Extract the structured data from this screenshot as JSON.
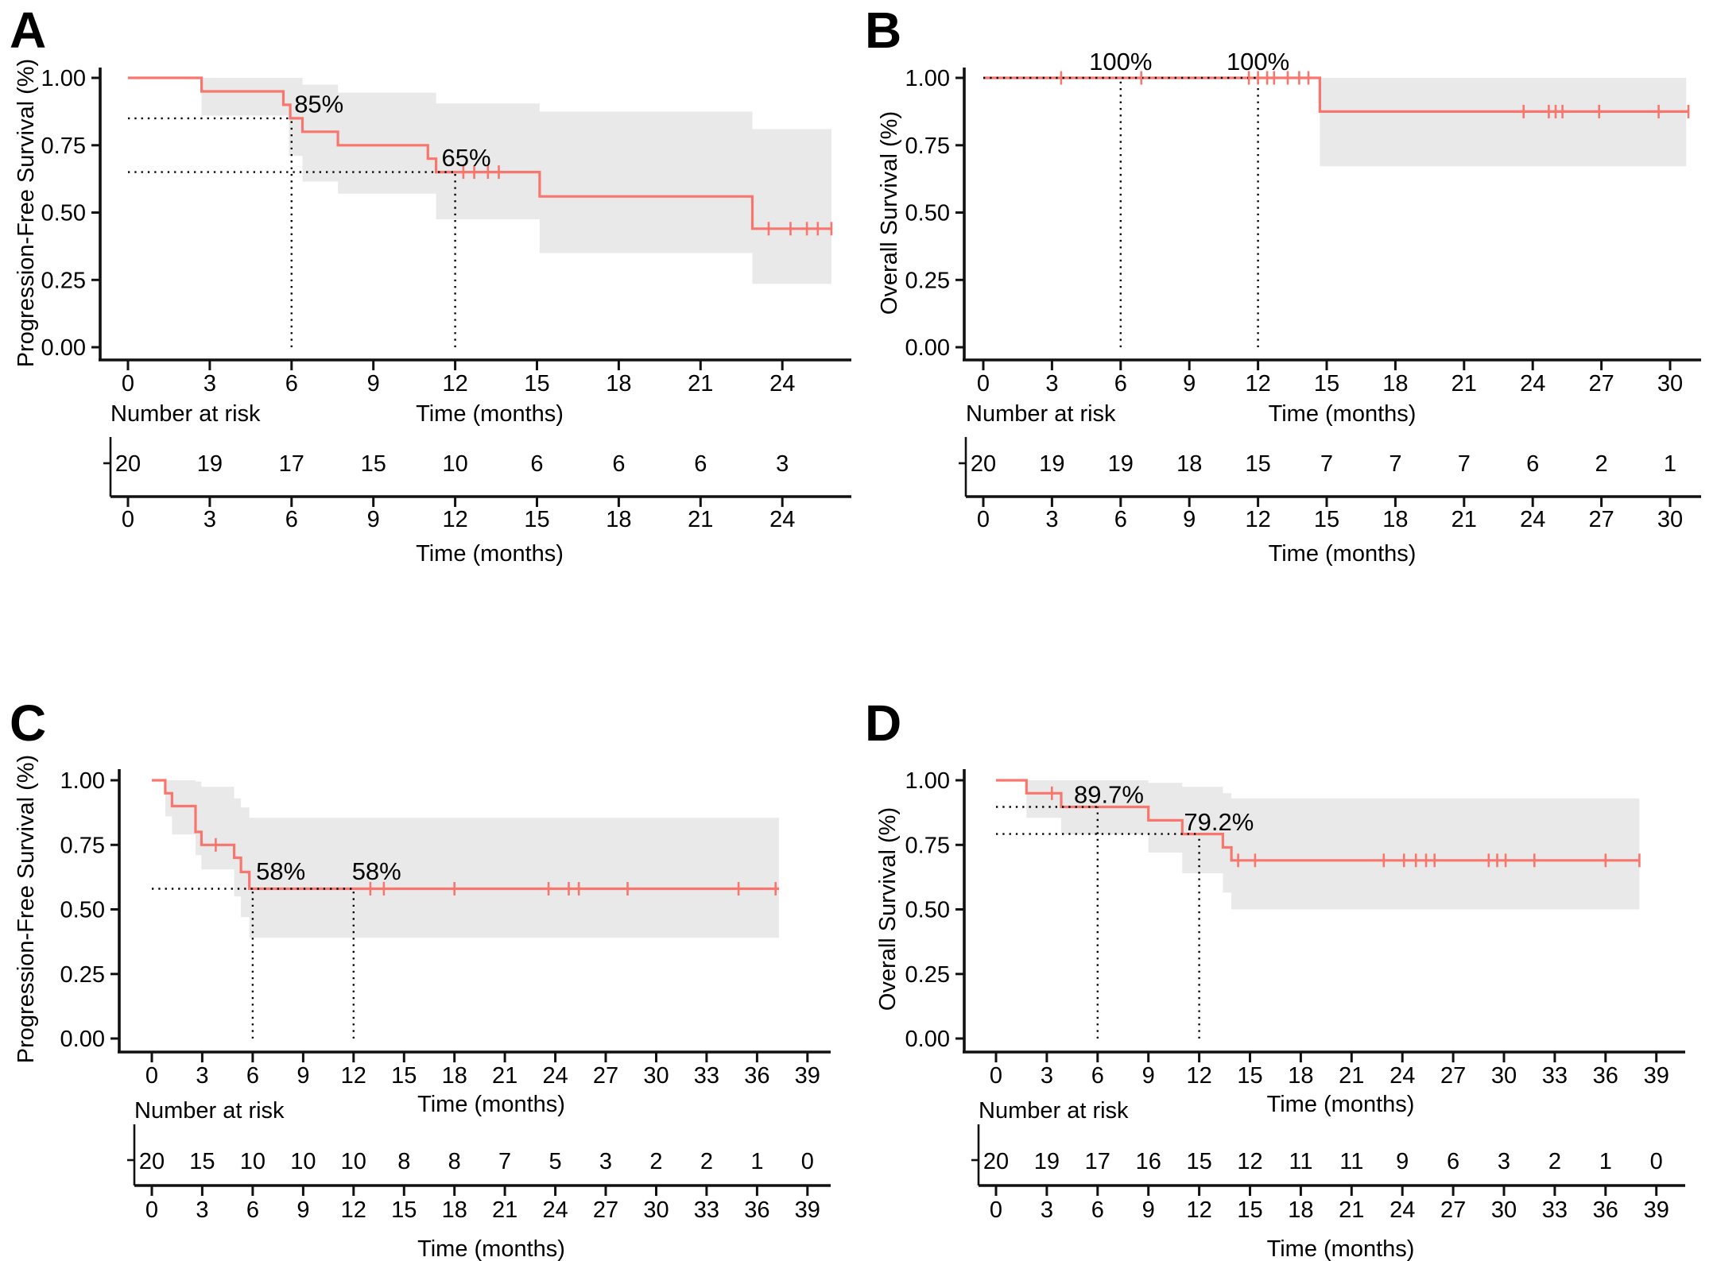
{
  "figure": {
    "background": "#ffffff",
    "text_color": "#000000",
    "panel_letters": [
      "A",
      "B",
      "C",
      "D"
    ]
  },
  "chart_data": [
    {
      "panel": "A",
      "type": "line",
      "chart_kind": "kaplan-meier-step",
      "ylabel": "Progression-Free Survival (%)",
      "xlabel": "Time (months)",
      "risk_header": "Number at risk",
      "x_ticks": [
        0,
        3,
        6,
        9,
        12,
        15,
        18,
        21,
        24
      ],
      "y_ticks": [
        0.0,
        0.25,
        0.5,
        0.75,
        1.0
      ],
      "y_tick_labels": [
        "0.00",
        "0.25",
        "0.50",
        "0.75",
        "1.00"
      ],
      "xlim": [
        0,
        26.5
      ],
      "ylim": [
        0,
        1.05
      ],
      "curve_color": "#F8766D",
      "ci_color": "#E9E9E9",
      "guide_color": "#000000",
      "steps": [
        [
          0,
          1.0
        ],
        [
          2.7,
          0.95
        ],
        [
          5.7,
          0.9
        ],
        [
          5.95,
          0.85
        ],
        [
          6.4,
          0.8
        ],
        [
          7.7,
          0.75
        ],
        [
          11.0,
          0.7
        ],
        [
          11.3,
          0.65
        ],
        [
          15.1,
          0.56
        ],
        [
          22.9,
          0.44
        ]
      ],
      "curve_end_x": 25.8,
      "censors": [
        [
          12.3,
          0.65
        ],
        [
          12.7,
          0.65
        ],
        [
          13.2,
          0.65
        ],
        [
          13.6,
          0.65
        ],
        [
          23.5,
          0.44
        ],
        [
          24.3,
          0.44
        ],
        [
          24.9,
          0.44
        ],
        [
          25.3,
          0.44
        ],
        [
          25.8,
          0.44
        ]
      ],
      "ci_steps": [
        [
          2.7,
          0.86,
          1.0
        ],
        [
          5.9,
          0.71,
          1.0
        ],
        [
          6.4,
          0.615,
          0.975
        ],
        [
          7.7,
          0.57,
          0.945
        ],
        [
          11.3,
          0.475,
          0.905
        ],
        [
          15.1,
          0.35,
          0.875
        ],
        [
          22.9,
          0.235,
          0.81
        ]
      ],
      "ci_end_x": 25.8,
      "annotations": [
        {
          "text": "85%",
          "x": 6.1,
          "y": 0.872,
          "anchor": "start"
        },
        {
          "text": "65%",
          "x": 11.5,
          "y": 0.672,
          "anchor": "start"
        }
      ],
      "guides": [
        {
          "o": "h",
          "at": 0.85,
          "from": 0,
          "to": 6
        },
        {
          "o": "v",
          "at": 6,
          "from": 0,
          "to": 0.85
        },
        {
          "o": "h",
          "at": 0.65,
          "from": 0,
          "to": 12
        },
        {
          "o": "v",
          "at": 12,
          "from": 0,
          "to": 0.65
        }
      ],
      "risk_times": [
        0,
        3,
        6,
        9,
        12,
        15,
        18,
        21,
        24
      ],
      "risk_counts": [
        20,
        19,
        17,
        15,
        10,
        6,
        6,
        6,
        3
      ]
    },
    {
      "panel": "B",
      "type": "line",
      "chart_kind": "kaplan-meier-step",
      "ylabel": "Overall Survival (%)",
      "xlabel": "Time (months)",
      "risk_header": "Number at risk",
      "x_ticks": [
        0,
        3,
        6,
        9,
        12,
        15,
        18,
        21,
        24,
        27,
        30
      ],
      "y_ticks": [
        0.0,
        0.25,
        0.5,
        0.75,
        1.0
      ],
      "y_tick_labels": [
        "0.00",
        "0.25",
        "0.50",
        "0.75",
        "1.00"
      ],
      "xlim": [
        0,
        31.5
      ],
      "ylim": [
        0,
        1.08
      ],
      "curve_color": "#F8766D",
      "ci_color": "#E9E9E9",
      "guide_color": "#000000",
      "steps": [
        [
          0,
          1.0
        ],
        [
          14.7,
          0.875
        ]
      ],
      "curve_end_x": 30.8,
      "censors": [
        [
          3.4,
          1.0
        ],
        [
          6.9,
          1.0
        ],
        [
          11.6,
          1.0
        ],
        [
          12.0,
          1.0
        ],
        [
          12.4,
          1.0
        ],
        [
          12.7,
          1.0
        ],
        [
          13.3,
          1.0
        ],
        [
          13.8,
          1.0
        ],
        [
          14.2,
          1.0
        ],
        [
          23.6,
          0.875
        ],
        [
          24.7,
          0.875
        ],
        [
          25.0,
          0.875
        ],
        [
          25.3,
          0.875
        ],
        [
          26.9,
          0.875
        ],
        [
          29.5,
          0.875
        ],
        [
          30.8,
          0.875
        ]
      ],
      "ci_steps": [
        [
          14.7,
          0.672,
          1.0
        ]
      ],
      "ci_end_x": 30.7,
      "annotations": [
        {
          "text": "100%",
          "x": 6,
          "y": 1.03,
          "anchor": "middle"
        },
        {
          "text": "100%",
          "x": 12,
          "y": 1.03,
          "anchor": "middle"
        }
      ],
      "guides": [
        {
          "o": "h",
          "at": 1.0,
          "from": 0,
          "to": 12
        },
        {
          "o": "v",
          "at": 6,
          "from": 0,
          "to": 1.0
        },
        {
          "o": "v",
          "at": 12,
          "from": 0,
          "to": 1.0
        }
      ],
      "risk_times": [
        0,
        3,
        6,
        9,
        12,
        15,
        18,
        21,
        24,
        27,
        30
      ],
      "risk_counts": [
        20,
        19,
        19,
        18,
        15,
        7,
        7,
        7,
        6,
        2,
        1
      ]
    },
    {
      "panel": "C",
      "type": "line",
      "chart_kind": "kaplan-meier-step",
      "ylabel": "Progression-Free Survival (%)",
      "xlabel": "Time (months)",
      "risk_header": "Number at risk",
      "x_ticks": [
        0,
        3,
        6,
        9,
        12,
        15,
        18,
        21,
        24,
        27,
        30,
        33,
        36,
        39
      ],
      "y_ticks": [
        0.0,
        0.25,
        0.5,
        0.75,
        1.0
      ],
      "y_tick_labels": [
        "0.00",
        "0.25",
        "0.50",
        "0.75",
        "1.00"
      ],
      "xlim": [
        0,
        40.5
      ],
      "ylim": [
        0,
        1.05
      ],
      "curve_color": "#F8766D",
      "ci_color": "#E9E9E9",
      "guide_color": "#000000",
      "steps": [
        [
          0,
          1.0
        ],
        [
          0.8,
          0.95
        ],
        [
          1.2,
          0.9
        ],
        [
          2.6,
          0.8
        ],
        [
          2.95,
          0.75
        ],
        [
          4.9,
          0.7
        ],
        [
          5.3,
          0.645
        ],
        [
          5.8,
          0.58
        ]
      ],
      "curve_end_x": 37.3,
      "censors": [
        [
          3.8,
          0.75
        ],
        [
          13.0,
          0.58
        ],
        [
          13.8,
          0.58
        ],
        [
          18.0,
          0.58
        ],
        [
          23.6,
          0.58
        ],
        [
          24.8,
          0.58
        ],
        [
          25.4,
          0.58
        ],
        [
          28.3,
          0.58
        ],
        [
          34.9,
          0.58
        ],
        [
          37.1,
          0.58
        ]
      ],
      "ci_steps": [
        [
          0.8,
          0.86,
          1.0
        ],
        [
          1.2,
          0.79,
          1.0
        ],
        [
          2.6,
          0.71,
          0.995
        ],
        [
          2.95,
          0.655,
          0.975
        ],
        [
          4.9,
          0.55,
          0.93
        ],
        [
          5.3,
          0.47,
          0.895
        ],
        [
          5.8,
          0.39,
          0.855
        ]
      ],
      "ci_end_x": 37.3,
      "annotations": [
        {
          "text": "58%",
          "x": 6.2,
          "y": 0.615,
          "anchor": "start"
        },
        {
          "text": "58%",
          "x": 11.9,
          "y": 0.615,
          "anchor": "start"
        }
      ],
      "guides": [
        {
          "o": "h",
          "at": 0.58,
          "from": 0,
          "to": 12
        },
        {
          "o": "v",
          "at": 6,
          "from": 0,
          "to": 0.58
        },
        {
          "o": "v",
          "at": 12,
          "from": 0,
          "to": 0.58
        }
      ],
      "risk_times": [
        0,
        3,
        6,
        9,
        12,
        15,
        18,
        21,
        24,
        27,
        30,
        33,
        36,
        39
      ],
      "risk_counts": [
        20,
        15,
        10,
        10,
        10,
        8,
        8,
        7,
        5,
        3,
        2,
        2,
        1,
        0
      ]
    },
    {
      "panel": "D",
      "type": "line",
      "chart_kind": "kaplan-meier-step",
      "ylabel": "Overall Survival (%)",
      "xlabel": "Time (months)",
      "risk_header": "Number at risk",
      "x_ticks": [
        0,
        3,
        6,
        9,
        12,
        15,
        18,
        21,
        24,
        27,
        30,
        33,
        36,
        39
      ],
      "y_ticks": [
        0.0,
        0.25,
        0.5,
        0.75,
        1.0
      ],
      "y_tick_labels": [
        "0.00",
        "0.25",
        "0.50",
        "0.75",
        "1.00"
      ],
      "xlim": [
        0,
        40.5
      ],
      "ylim": [
        0,
        1.05
      ],
      "curve_color": "#F8766D",
      "ci_color": "#E9E9E9",
      "guide_color": "#000000",
      "steps": [
        [
          0,
          1.0
        ],
        [
          1.8,
          0.95
        ],
        [
          3.85,
          0.897
        ],
        [
          9.0,
          0.845
        ],
        [
          11.0,
          0.792
        ],
        [
          13.4,
          0.74
        ],
        [
          13.9,
          0.69
        ]
      ],
      "curve_end_x": 38.0,
      "censors": [
        [
          3.3,
          0.95
        ],
        [
          14.3,
          0.69
        ],
        [
          15.3,
          0.69
        ],
        [
          22.9,
          0.69
        ],
        [
          24.1,
          0.69
        ],
        [
          24.8,
          0.69
        ],
        [
          25.4,
          0.69
        ],
        [
          25.9,
          0.69
        ],
        [
          29.1,
          0.69
        ],
        [
          29.6,
          0.69
        ],
        [
          30.1,
          0.69
        ],
        [
          31.8,
          0.69
        ],
        [
          36.0,
          0.69
        ],
        [
          38.0,
          0.69
        ]
      ],
      "ci_steps": [
        [
          1.8,
          0.855,
          1.0
        ],
        [
          3.85,
          0.79,
          1.0
        ],
        [
          9.0,
          0.72,
          0.99
        ],
        [
          11.0,
          0.64,
          0.975
        ],
        [
          13.4,
          0.565,
          0.95
        ],
        [
          13.9,
          0.5,
          0.93
        ]
      ],
      "ci_end_x": 38.0,
      "annotations": [
        {
          "text": "89.7%",
          "x": 4.6,
          "y": 0.912,
          "anchor": "start"
        },
        {
          "text": "79.2%",
          "x": 11.1,
          "y": 0.806,
          "anchor": "start"
        }
      ],
      "guides": [
        {
          "o": "h",
          "at": 0.897,
          "from": 0,
          "to": 6
        },
        {
          "o": "v",
          "at": 6,
          "from": 0,
          "to": 0.897
        },
        {
          "o": "h",
          "at": 0.792,
          "from": 0,
          "to": 12
        },
        {
          "o": "v",
          "at": 12,
          "from": 0,
          "to": 0.792
        }
      ],
      "risk_times": [
        0,
        3,
        6,
        9,
        12,
        15,
        18,
        21,
        24,
        27,
        30,
        33,
        36,
        39
      ],
      "risk_counts": [
        20,
        19,
        17,
        16,
        15,
        12,
        11,
        11,
        9,
        6,
        3,
        2,
        1,
        0
      ]
    }
  ]
}
